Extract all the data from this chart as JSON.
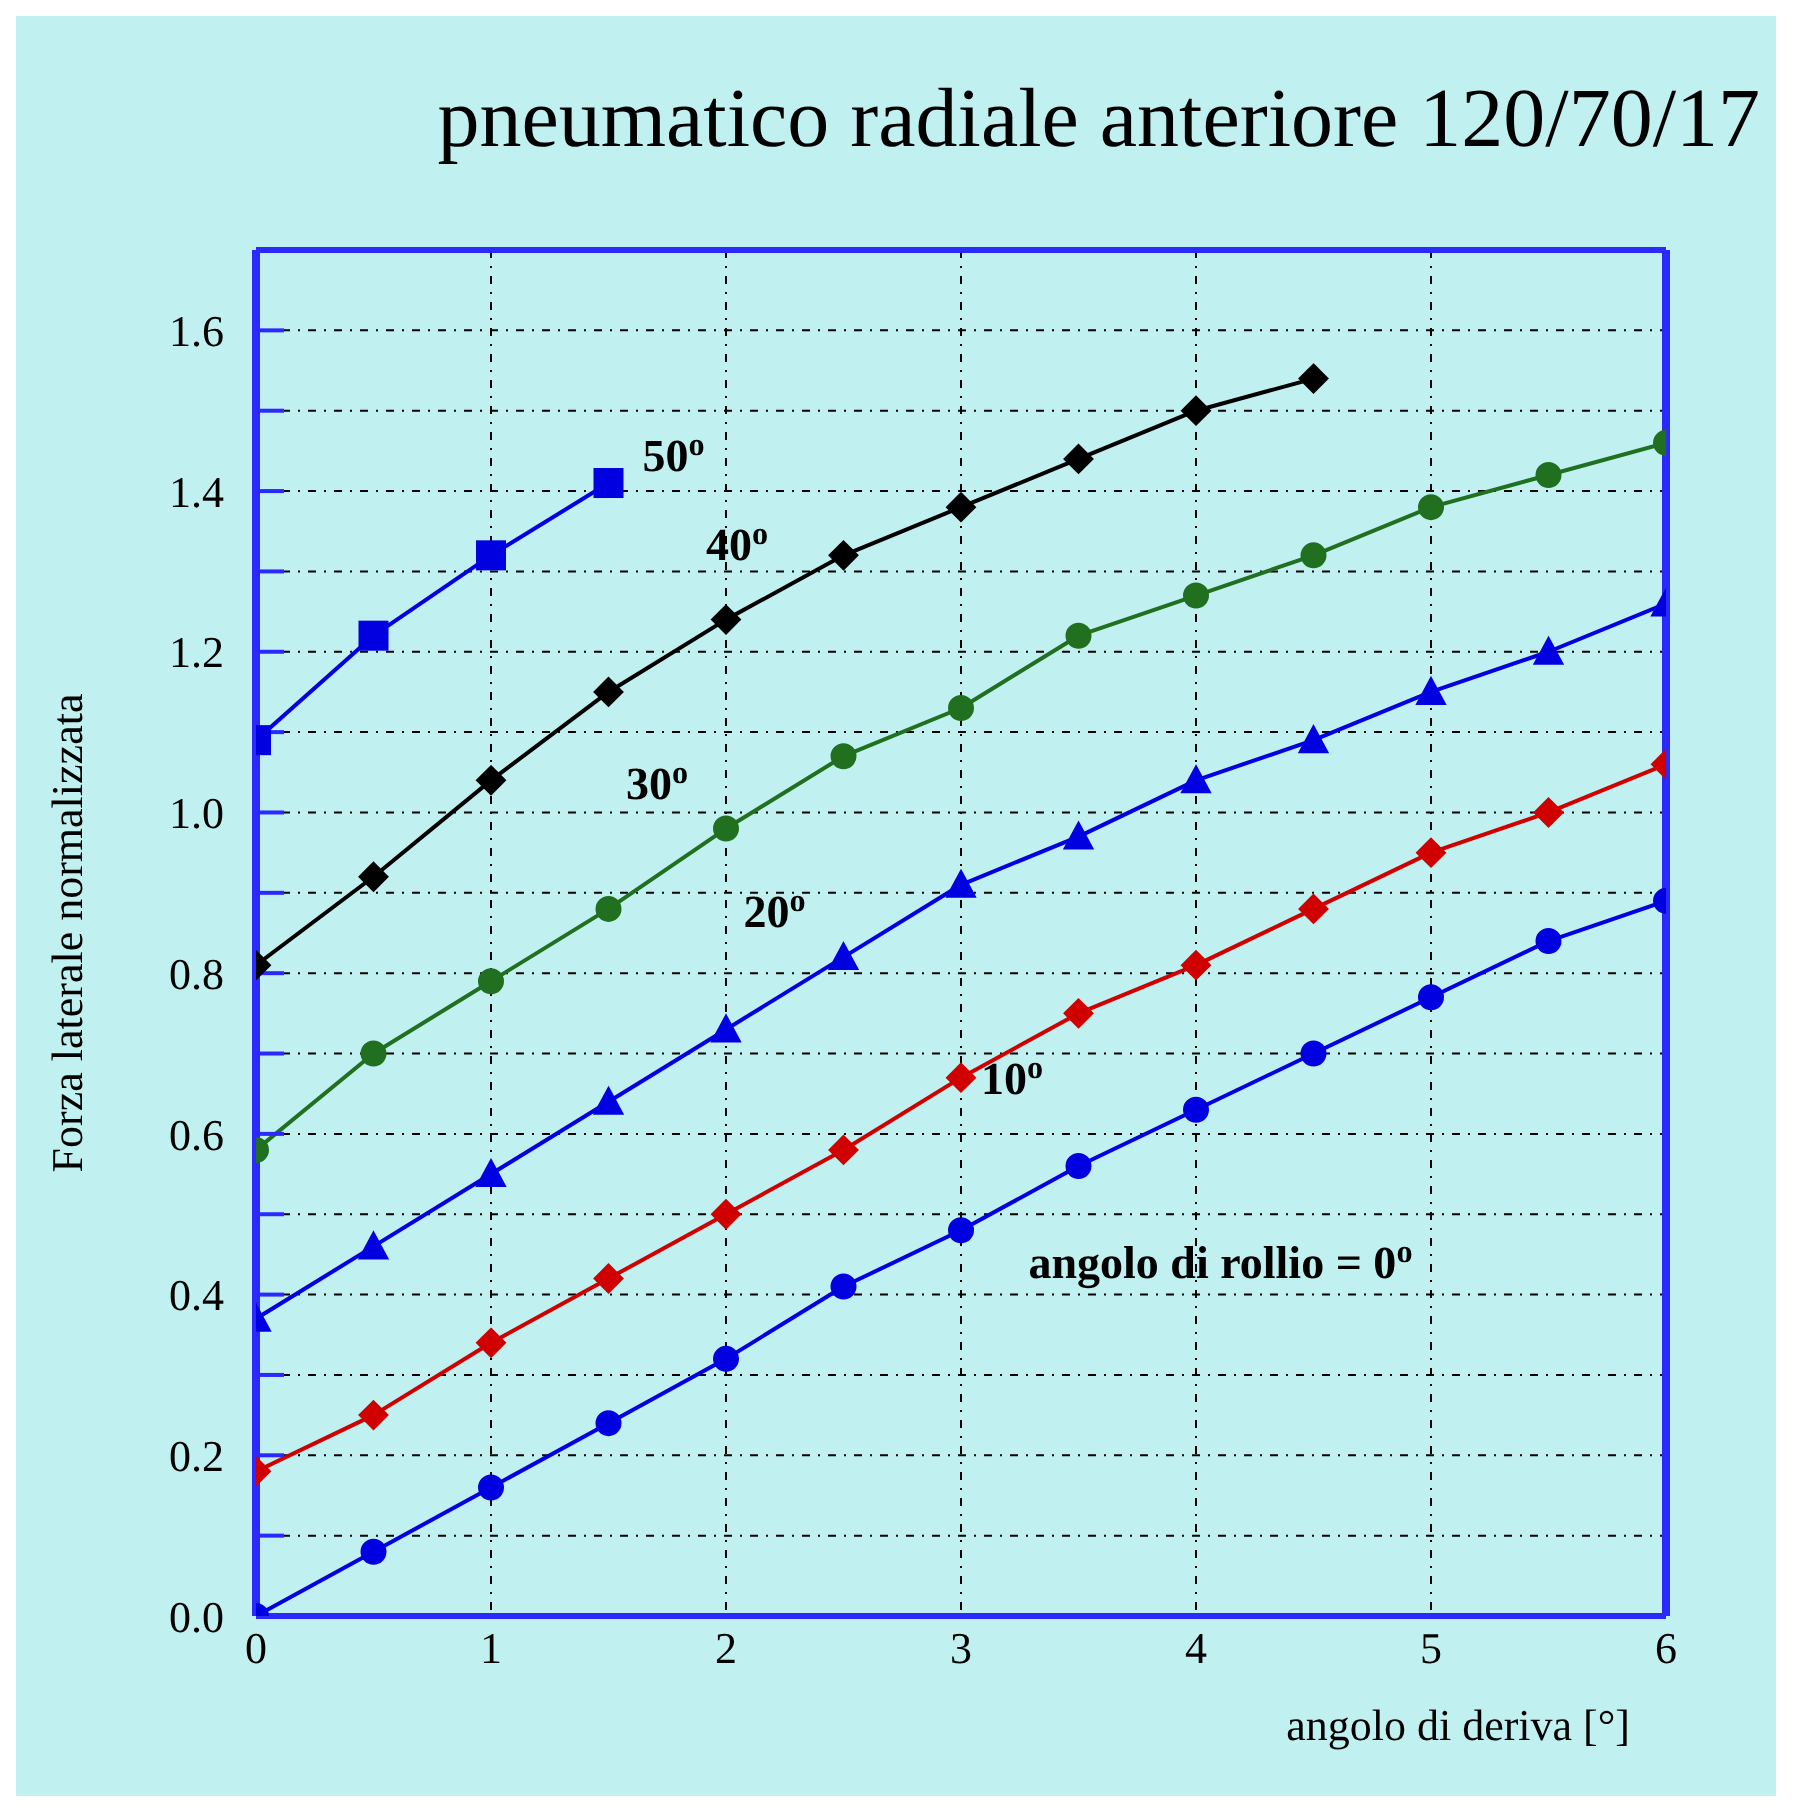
{
  "chart_data": {
    "type": "line",
    "title": "pneumatico radiale anteriore 120/70/17",
    "xlabel": "angolo di deriva [°]",
    "ylabel": "Forza laterale normalizzata",
    "x": [
      0,
      0.5,
      1,
      1.5,
      2,
      2.5,
      3,
      3.5,
      4,
      4.5,
      5,
      5.5,
      6
    ],
    "xlim": [
      0,
      6
    ],
    "xticks": [
      0,
      1,
      2,
      3,
      4,
      5,
      6
    ],
    "ylim": [
      0,
      1.7
    ],
    "yticks": [
      {
        "value": 0,
        "label": "0.0"
      },
      {
        "value": 0.1,
        "label": null
      },
      0.2,
      {
        "value": 0.3,
        "label": null
      },
      0.4,
      {
        "value": 0.5,
        "label": null
      },
      0.6,
      {
        "value": 0.7,
        "label": null
      },
      0.8,
      {
        "value": 0.9,
        "label": null
      },
      {
        "value": 1,
        "label": "1.0"
      },
      {
        "value": 1.1,
        "label": null
      },
      1.2,
      {
        "value": 1.3,
        "label": null
      },
      1.4,
      {
        "value": 1.5,
        "label": null
      },
      1.6
    ],
    "grid": true,
    "line_style": "solid",
    "series": [
      {
        "name": "angolo di rollio = 0$^{o}$",
        "color": "#0000e0",
        "marker": "circle",
        "values": [
          0,
          0.08,
          0.16,
          0.24,
          0.32,
          0.41,
          0.48,
          0.56,
          0.63,
          0.7,
          0.77,
          0.84,
          0.89
        ]
      },
      {
        "name": "10$^{o}$",
        "color": "#d00000",
        "marker": "diamond",
        "values": [
          0.18,
          0.25,
          0.34,
          0.42,
          0.5,
          0.58,
          0.67,
          0.75,
          0.81,
          0.88,
          0.95,
          1.0,
          1.06
        ]
      },
      {
        "name": "20$^{o}$",
        "color": "#0000e0",
        "marker": "triangle",
        "values": [
          0.37,
          0.46,
          0.55,
          0.64,
          0.73,
          0.82,
          0.91,
          0.97,
          1.04,
          1.09,
          1.15,
          1.2,
          1.26
        ]
      },
      {
        "name": "30$^{o}$",
        "color": "#207020",
        "marker": "circle",
        "values": [
          0.58,
          0.7,
          0.79,
          0.88,
          0.98,
          1.07,
          1.13,
          1.22,
          1.27,
          1.32,
          1.38,
          1.42,
          1.46
        ]
      },
      {
        "name": "40$^{o}$",
        "color": "#000000",
        "marker": "diamond",
        "values": [
          0.81,
          0.92,
          1.04,
          1.15,
          1.24,
          1.32,
          1.38,
          1.44,
          1.5,
          1.54,
          null,
          null,
          null
        ]
      },
      {
        "name": "50$^{o}$",
        "color": "#0000e0",
        "marker": "square",
        "values": [
          1.09,
          1.22,
          1.32,
          1.41,
          null,
          null,
          null,
          null,
          null,
          null,
          null,
          null,
          null
        ]
      }
    ]
  }
}
